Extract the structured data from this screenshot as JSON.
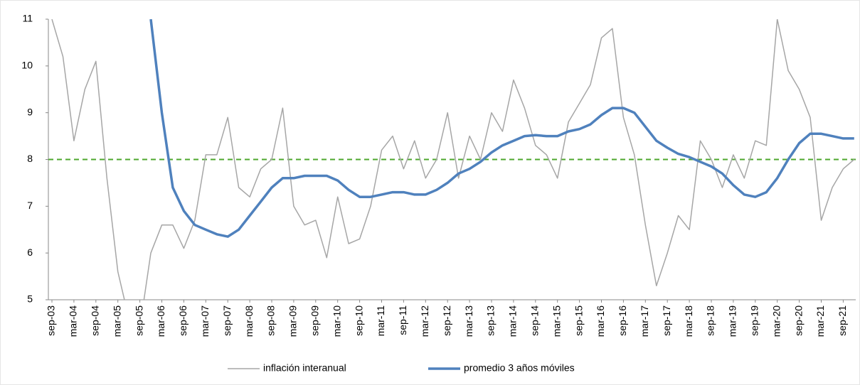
{
  "chart_data": {
    "type": "line",
    "categories": [
      "sep-03",
      null,
      "mar-04",
      null,
      "sep-04",
      null,
      "mar-05",
      null,
      "sep-05",
      null,
      "mar-06",
      null,
      "sep-06",
      null,
      "mar-07",
      null,
      "sep-07",
      null,
      "mar-08",
      null,
      "sep-08",
      null,
      "mar-09",
      null,
      "sep-09",
      null,
      "mar-10",
      null,
      "sep-10",
      null,
      "mar-11",
      null,
      "sep-11",
      null,
      "mar-12",
      null,
      "sep-12",
      null,
      "mar-13",
      null,
      "sep-13",
      null,
      "mar-14",
      null,
      "sep-14",
      null,
      "mar-15",
      null,
      "sep-15",
      null,
      "mar-16",
      null,
      "sep-16",
      null,
      "mar-17",
      null,
      "sep-17",
      null,
      "mar-18",
      null,
      "sep-18",
      null,
      "mar-19",
      null,
      "sep-19",
      null,
      "mar-20",
      null,
      "sep-20",
      null,
      "mar-21",
      null,
      "sep-21",
      null
    ],
    "series": [
      {
        "name": "inflación interanual",
        "color": "#a6a6a6",
        "width": 1.5,
        "values": [
          11.0,
          10.2,
          8.4,
          9.5,
          10.1,
          7.6,
          5.6,
          4.6,
          4.4,
          6.0,
          6.6,
          6.6,
          6.1,
          6.7,
          8.1,
          8.1,
          8.9,
          7.4,
          7.2,
          7.8,
          8.0,
          9.1,
          7.0,
          6.6,
          6.7,
          5.9,
          7.2,
          6.2,
          6.3,
          7.0,
          8.2,
          8.5,
          7.8,
          8.4,
          7.6,
          8.0,
          9.0,
          7.6,
          8.5,
          8.0,
          9.0,
          8.6,
          9.7,
          9.1,
          8.3,
          8.1,
          7.6,
          8.8,
          9.2,
          9.6,
          10.6,
          10.8,
          8.9,
          8.1,
          6.6,
          5.3,
          6.0,
          6.8,
          6.5,
          8.4,
          8.0,
          7.4,
          8.1,
          7.6,
          8.4,
          8.3,
          11.0,
          9.9,
          9.5,
          8.9,
          6.7,
          7.4,
          7.8,
          8.0
        ]
      },
      {
        "name": "promedio 3 años móviles",
        "color": "#4f81bd",
        "width": 3.5,
        "values": [
          null,
          null,
          null,
          null,
          null,
          null,
          null,
          null,
          null,
          11.0,
          9.0,
          7.4,
          6.9,
          6.6,
          6.5,
          6.4,
          6.35,
          6.5,
          6.8,
          7.1,
          7.4,
          7.6,
          7.6,
          7.65,
          7.65,
          7.65,
          7.55,
          7.35,
          7.2,
          7.2,
          7.25,
          7.3,
          7.3,
          7.25,
          7.25,
          7.35,
          7.5,
          7.7,
          7.8,
          7.95,
          8.15,
          8.3,
          8.4,
          8.5,
          8.52,
          8.5,
          8.5,
          8.6,
          8.65,
          8.75,
          8.95,
          9.1,
          9.1,
          9.0,
          8.7,
          8.4,
          8.25,
          8.12,
          8.05,
          7.95,
          7.85,
          7.7,
          7.45,
          7.25,
          7.2,
          7.3,
          7.6,
          8.0,
          8.35,
          8.55,
          8.55,
          8.5,
          8.45,
          8.45
        ]
      }
    ],
    "reference_line": 8,
    "reference_color": "#4ea72e",
    "ylim": [
      5,
      11
    ],
    "yticks": [
      5,
      6,
      7,
      8,
      9,
      10,
      11
    ],
    "legend": "bottom"
  }
}
